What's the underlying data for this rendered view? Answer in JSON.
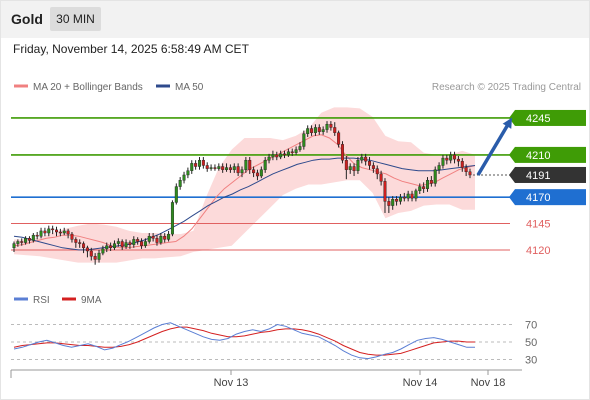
{
  "header": {
    "title": "Gold",
    "timeframe_label": "30 MIN"
  },
  "datetime": "Friday, November 14, 2025 6:58:49 AM CET",
  "legend": {
    "ma20": {
      "label": "MA 20 + Bollinger Bands",
      "color": "#f08080"
    },
    "ma50": {
      "label": "MA 50",
      "color": "#2e4a8c"
    }
  },
  "copyright": "Research © 2025 Trading Central",
  "rsi_legend": {
    "rsi": {
      "label": "RSI",
      "color": "#5b7fd4"
    },
    "ma9": {
      "label": "9MA",
      "color": "#d42020"
    }
  },
  "chart_data": {
    "type": "candlestick",
    "price_range": [
      4101,
      4262
    ],
    "levels": [
      {
        "label": "4245",
        "value": 4245,
        "color": "#3f9c06",
        "style": "solid",
        "badge": true
      },
      {
        "label": "4210",
        "value": 4210,
        "color": "#3f9c06",
        "style": "solid",
        "badge": true
      },
      {
        "label": "4170",
        "value": 4170,
        "color": "#1f6fd1",
        "style": "solid",
        "badge": true
      },
      {
        "label": "4145",
        "value": 4145,
        "color": "#e06060",
        "style": "thin",
        "badge": false
      },
      {
        "label": "4120",
        "value": 4120,
        "color": "#e06060",
        "style": "thin",
        "badge": false
      }
    ],
    "current_price": {
      "label": "4191",
      "value": 4191,
      "color": "#333333"
    },
    "arrow": {
      "from": 4191,
      "to": 4242,
      "color": "#2a5caa",
      "direction": "up"
    },
    "candles": [
      [
        4122,
        4126,
        4118,
        4128
      ],
      [
        4126,
        4128,
        4123,
        4130
      ],
      [
        4128,
        4127,
        4124,
        4131
      ],
      [
        4127,
        4131,
        4125,
        4133
      ],
      [
        4131,
        4129,
        4126,
        4133
      ],
      [
        4129,
        4134,
        4127,
        4136
      ],
      [
        4134,
        4133,
        4130,
        4137
      ],
      [
        4133,
        4138,
        4131,
        4141
      ],
      [
        4138,
        4136,
        4133,
        4141
      ],
      [
        4136,
        4140,
        4133,
        4143
      ],
      [
        4140,
        4139,
        4135,
        4143
      ],
      [
        4139,
        4137,
        4133,
        4142
      ],
      [
        4137,
        4136,
        4133,
        4140
      ],
      [
        4136,
        4138,
        4134,
        4141
      ],
      [
        4138,
        4135,
        4131,
        4140
      ],
      [
        4135,
        4130,
        4127,
        4137
      ],
      [
        4130,
        4127,
        4122,
        4132
      ],
      [
        4127,
        4126,
        4122,
        4130
      ],
      [
        4126,
        4122,
        4117,
        4128
      ],
      [
        4122,
        4119,
        4113,
        4124
      ],
      [
        4119,
        4114,
        4110,
        4122
      ],
      [
        4114,
        4111,
        4106,
        4117
      ],
      [
        4111,
        4117,
        4108,
        4120
      ],
      [
        4117,
        4121,
        4115,
        4124
      ],
      [
        4121,
        4124,
        4118,
        4127
      ],
      [
        4124,
        4122,
        4119,
        4127
      ],
      [
        4122,
        4126,
        4120,
        4129
      ],
      [
        4126,
        4128,
        4123,
        4131
      ],
      [
        4128,
        4123,
        4120,
        4130
      ],
      [
        4123,
        4127,
        4121,
        4130
      ],
      [
        4127,
        4125,
        4121,
        4129
      ],
      [
        4125,
        4130,
        4122,
        4133
      ],
      [
        4130,
        4128,
        4125,
        4132
      ],
      [
        4128,
        4124,
        4121,
        4131
      ],
      [
        4124,
        4128,
        4122,
        4131
      ],
      [
        4128,
        4133,
        4126,
        4136
      ],
      [
        4133,
        4131,
        4128,
        4136
      ],
      [
        4131,
        4127,
        4124,
        4134
      ],
      [
        4127,
        4133,
        4125,
        4136
      ],
      [
        4133,
        4130,
        4127,
        4136
      ],
      [
        4130,
        4135,
        4128,
        4138
      ],
      [
        4135,
        4165,
        4133,
        4167
      ],
      [
        4165,
        4180,
        4163,
        4183
      ],
      [
        4180,
        4186,
        4177,
        4189
      ],
      [
        4186,
        4191,
        4183,
        4194
      ],
      [
        4191,
        4195,
        4188,
        4198
      ],
      [
        4195,
        4202,
        4192,
        4205
      ],
      [
        4202,
        4199,
        4196,
        4205
      ],
      [
        4199,
        4205,
        4196,
        4208
      ],
      [
        4205,
        4200,
        4197,
        4208
      ],
      [
        4200,
        4197,
        4194,
        4203
      ],
      [
        4197,
        4198,
        4195,
        4201
      ],
      [
        4198,
        4197,
        4195,
        4201
      ],
      [
        4197,
        4199,
        4195,
        4202
      ],
      [
        4199,
        4196,
        4193,
        4202
      ],
      [
        4196,
        4198,
        4194,
        4202
      ],
      [
        4198,
        4196,
        4193,
        4201
      ],
      [
        4196,
        4199,
        4193,
        4202
      ],
      [
        4199,
        4193,
        4190,
        4202
      ],
      [
        4193,
        4196,
        4189,
        4199
      ],
      [
        4196,
        4205,
        4193,
        4208
      ],
      [
        4205,
        4196,
        4192,
        4208
      ],
      [
        4196,
        4193,
        4189,
        4199
      ],
      [
        4193,
        4190,
        4186,
        4196
      ],
      [
        4190,
        4196,
        4188,
        4199
      ],
      [
        4196,
        4205,
        4193,
        4208
      ],
      [
        4205,
        4208,
        4202,
        4211
      ],
      [
        4208,
        4210,
        4205,
        4214
      ],
      [
        4210,
        4208,
        4205,
        4213
      ],
      [
        4208,
        4211,
        4206,
        4214
      ],
      [
        4211,
        4210,
        4207,
        4214
      ],
      [
        4210,
        4213,
        4208,
        4216
      ],
      [
        4213,
        4212,
        4209,
        4216
      ],
      [
        4212,
        4215,
        4210,
        4218
      ],
      [
        4215,
        4218,
        4213,
        4222
      ],
      [
        4218,
        4230,
        4215,
        4233
      ],
      [
        4230,
        4235,
        4227,
        4238
      ],
      [
        4235,
        4231,
        4228,
        4238
      ],
      [
        4231,
        4236,
        4228,
        4239
      ],
      [
        4236,
        4232,
        4229,
        4239
      ],
      [
        4232,
        4234,
        4229,
        4237
      ],
      [
        4234,
        4239,
        4231,
        4242
      ],
      [
        4239,
        4236,
        4233,
        4242
      ],
      [
        4236,
        4231,
        4228,
        4241
      ],
      [
        4231,
        4220,
        4217,
        4233
      ],
      [
        4220,
        4205,
        4202,
        4223
      ],
      [
        4205,
        4196,
        4187,
        4209
      ],
      [
        4196,
        4199,
        4192,
        4202
      ],
      [
        4199,
        4195,
        4190,
        4202
      ],
      [
        4195,
        4205,
        4192,
        4208
      ],
      [
        4205,
        4208,
        4202,
        4211
      ],
      [
        4208,
        4204,
        4200,
        4211
      ],
      [
        4204,
        4200,
        4196,
        4208
      ],
      [
        4200,
        4197,
        4193,
        4203
      ],
      [
        4197,
        4192,
        4187,
        4200
      ],
      [
        4192,
        4185,
        4181,
        4195
      ],
      [
        4185,
        4166,
        4155,
        4188
      ],
      [
        4166,
        4162,
        4155,
        4170
      ],
      [
        4162,
        4168,
        4158,
        4171
      ],
      [
        4168,
        4166,
        4162,
        4171
      ],
      [
        4166,
        4170,
        4163,
        4173
      ],
      [
        4170,
        4169,
        4166,
        4174
      ],
      [
        4169,
        4173,
        4166,
        4176
      ],
      [
        4173,
        4169,
        4166,
        4176
      ],
      [
        4169,
        4176,
        4166,
        4178
      ],
      [
        4176,
        4180,
        4173,
        4183
      ],
      [
        4180,
        4178,
        4174,
        4184
      ],
      [
        4178,
        4186,
        4175,
        4189
      ],
      [
        4186,
        4183,
        4180,
        4190
      ],
      [
        4183,
        4196,
        4180,
        4199
      ],
      [
        4196,
        4200,
        4192,
        4203
      ],
      [
        4200,
        4207,
        4197,
        4210
      ],
      [
        4207,
        4205,
        4201,
        4210
      ],
      [
        4205,
        4210,
        4202,
        4213
      ],
      [
        4210,
        4206,
        4202,
        4213
      ],
      [
        4206,
        4204,
        4199,
        4209
      ],
      [
        4204,
        4198,
        4194,
        4207
      ],
      [
        4198,
        4194,
        4190,
        4201
      ],
      [
        4194,
        4191,
        4188,
        4197
      ]
    ],
    "bollinger": {
      "upper": [
        4130,
        4130,
        4132,
        4136,
        4140,
        4143,
        4145,
        4144,
        4142,
        4138,
        4136,
        4136,
        4135,
        4135,
        4138,
        4170,
        4198,
        4215,
        4226,
        4226,
        4226,
        4224,
        4228,
        4235,
        4250,
        4255,
        4255,
        4254,
        4246,
        4228,
        4223,
        4222,
        4212,
        4210,
        4210,
        4214,
        4210
      ],
      "lower": [
        4116,
        4115,
        4114,
        4112,
        4110,
        4108,
        4108,
        4108,
        4108,
        4110,
        4112,
        4112,
        4113,
        4114,
        4118,
        4120,
        4122,
        4124,
        4136,
        4148,
        4160,
        4172,
        4178,
        4182,
        4182,
        4184,
        4186,
        4186,
        4174,
        4150,
        4155,
        4157,
        4162,
        4163,
        4163,
        4158,
        4158
      ]
    },
    "ma20": [
      4124,
      4125,
      4127,
      4129,
      4131,
      4132,
      4134,
      4134,
      4133,
      4131,
      4129,
      4127,
      4124,
      4122,
      4122,
      4123,
      4124,
      4125,
      4126,
      4127,
      4128,
      4133,
      4140,
      4150,
      4160,
      4170,
      4178,
      4184,
      4190,
      4196,
      4200,
      4204,
      4208,
      4212,
      4216,
      4220,
      4224,
      4228,
      4229,
      4226,
      4220,
      4210,
      4202,
      4198,
      4196,
      4194,
      4192,
      4188,
      4185,
      4183,
      4181,
      4182,
      4184,
      4188,
      4192,
      4196,
      4198,
      4200
    ],
    "ma50": [
      4133,
      4132,
      4130,
      4128,
      4126,
      4124,
      4122,
      4121,
      4120,
      4120,
      4121,
      4122,
      4123,
      4124,
      4125,
      4127,
      4129,
      4132,
      4135,
      4139,
      4143,
      4147,
      4152,
      4157,
      4162,
      4166,
      4170,
      4173,
      4177,
      4180,
      4184,
      4188,
      4192,
      4195,
      4198,
      4201,
      4203,
      4205,
      4206,
      4206,
      4207,
      4207,
      4207,
      4206,
      4205,
      4203,
      4201,
      4199,
      4197,
      4196,
      4195,
      4195,
      4195,
      4196,
      4197,
      4198,
      4199,
      4200
    ],
    "rsi": {
      "levels": [
        70,
        50,
        30
      ],
      "range": [
        18,
        82
      ],
      "rsi": [
        42,
        44,
        47,
        50,
        52,
        49,
        46,
        44,
        46,
        48,
        45,
        41,
        43,
        47,
        51,
        56,
        61,
        66,
        70,
        72,
        68,
        64,
        60,
        56,
        53,
        52,
        54,
        59,
        62,
        64,
        62,
        65,
        70,
        68,
        64,
        60,
        58,
        56,
        51,
        46,
        40,
        35,
        32,
        31,
        33,
        36,
        38,
        42,
        47,
        52,
        54,
        55,
        53,
        50,
        47,
        44,
        44
      ],
      "ma9": [
        44,
        46,
        47,
        48,
        49,
        49,
        48,
        47,
        46,
        46,
        45,
        44,
        44,
        45,
        47,
        50,
        54,
        58,
        62,
        65,
        67,
        67,
        65,
        63,
        60,
        58,
        56,
        56,
        57,
        59,
        61,
        62,
        64,
        65,
        65,
        64,
        62,
        59,
        55,
        51,
        46,
        42,
        38,
        36,
        35,
        35,
        36,
        37,
        40,
        43,
        46,
        49,
        50,
        51,
        51,
        50,
        50
      ]
    },
    "x_ticks": [
      "Nov 13",
      "Nov 14",
      "Nov 18"
    ],
    "rsi_tick_labels": [
      "70",
      "50",
      "30"
    ]
  }
}
